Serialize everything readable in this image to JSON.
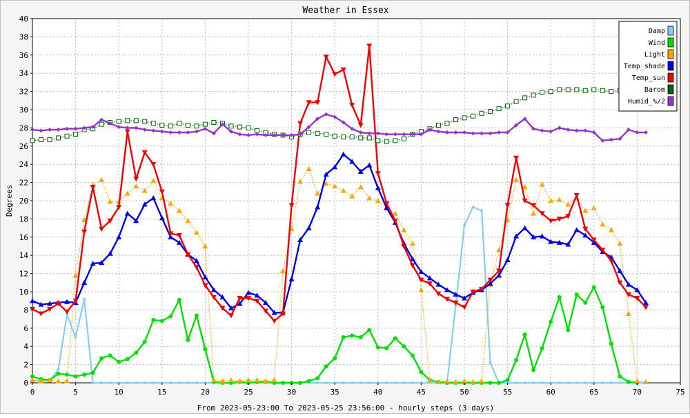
{
  "chart_data": {
    "type": "line",
    "title": "Weather in Essex",
    "xlabel": "From 2023-05-23:00 To 2023-05-25 23:56:00 - hourly steps (3 days)",
    "ylabel": "Degrees",
    "xlim": [
      0,
      75
    ],
    "ylim": [
      0,
      40
    ],
    "x_ticks": [
      0,
      5,
      10,
      15,
      20,
      25,
      30,
      35,
      40,
      45,
      50,
      55,
      60,
      65,
      70,
      75
    ],
    "y_ticks": [
      0,
      2,
      4,
      6,
      8,
      10,
      12,
      14,
      16,
      18,
      20,
      22,
      24,
      26,
      28,
      30,
      32,
      34,
      36,
      38,
      40
    ],
    "grid": true,
    "legend_position": "top-right",
    "series": [
      {
        "name": "Damp",
        "color": "#87ceeb",
        "values": [
          0.3,
          0.2,
          0.2,
          1.5,
          7.5,
          5.0,
          9.2,
          0,
          0,
          0,
          0,
          0,
          0,
          0,
          0,
          0,
          0,
          0,
          0,
          0,
          0,
          0,
          0,
          0,
          0,
          0,
          0,
          0,
          0,
          0,
          0,
          0,
          0,
          0,
          0,
          0,
          0,
          0,
          0,
          0,
          0,
          0,
          0,
          0,
          0,
          0,
          0,
          0,
          0,
          8.5,
          17.3,
          19.3,
          18.9,
          2.2,
          0,
          0,
          0,
          0,
          0,
          0,
          0,
          0,
          0,
          0,
          0,
          0,
          0,
          0,
          0,
          0,
          0,
          0
        ]
      },
      {
        "name": "Wind",
        "color": "#00dd00",
        "values": [
          0.7,
          0.4,
          0.3,
          1.0,
          0.9,
          0.7,
          0.9,
          1.1,
          2.7,
          3.0,
          2.3,
          2.6,
          3.3,
          4.5,
          6.9,
          6.8,
          7.3,
          9.1,
          4.7,
          7.4,
          3.7,
          0.1,
          0,
          0,
          0.1,
          0,
          0.1,
          0.1,
          0,
          0,
          0,
          0,
          0.2,
          0.5,
          1.8,
          2.7,
          5.0,
          5.2,
          5.0,
          5.8,
          3.9,
          3.8,
          4.9,
          4.0,
          3.0,
          1.2,
          0.3,
          0.1,
          0,
          0,
          0,
          0,
          0,
          0,
          0,
          0.3,
          2.5,
          5.3,
          1.4,
          3.8,
          6.7,
          9.4,
          5.8,
          9.7,
          8.8,
          10.5,
          8.3,
          4.3,
          0.7,
          0.1,
          0
        ]
      },
      {
        "name": "Light",
        "color": "#ffa500",
        "values": [
          0.3,
          0.2,
          0.3,
          0.2,
          0.2,
          11.8,
          17.9,
          21.7,
          22.3,
          19.9,
          19.9,
          20.8,
          21.6,
          21.1,
          22.2,
          20.3,
          19.7,
          18.9,
          17.8,
          16.5,
          15.0,
          0.3,
          0.2,
          0.3,
          0.2,
          0.3,
          0.3,
          0.2,
          0.3,
          12.3,
          16.9,
          22.1,
          23.5,
          20.8,
          21.9,
          21.6,
          21.1,
          20.5,
          21.5,
          20.3,
          20.0,
          19.3,
          18.6,
          16.8,
          15.3,
          10.2,
          0.3,
          0.1,
          0.2,
          0.1,
          0.2,
          0.1,
          0.2,
          10.8,
          14.6,
          17.9,
          22.3,
          21.5,
          18.6,
          21.8,
          20.0,
          20.1,
          19.6,
          20.3,
          18.9,
          19.2,
          17.4,
          16.8,
          15.3,
          7.6,
          0.2,
          0.1
        ]
      },
      {
        "name": "Temp_shade",
        "color": "#0000dd",
        "values": [
          9.0,
          8.6,
          8.7,
          8.8,
          8.9,
          8.8,
          11.0,
          13.1,
          13.2,
          14.2,
          16.0,
          18.6,
          17.8,
          19.6,
          20.3,
          18.1,
          16.0,
          15.4,
          14.1,
          13.4,
          11.6,
          10.2,
          9.4,
          8.2,
          8.7,
          9.9,
          9.6,
          8.8,
          7.7,
          7.7,
          11.4,
          15.7,
          17.0,
          19.3,
          22.9,
          23.7,
          25.1,
          24.3,
          23.2,
          23.9,
          21.4,
          19.2,
          17.6,
          15.3,
          13.6,
          12.2,
          11.5,
          10.8,
          10.2,
          9.7,
          9.3,
          9.9,
          10.2,
          10.9,
          11.8,
          13.5,
          16.1,
          17.0,
          16.0,
          16.1,
          15.5,
          15.4,
          15.2,
          16.8,
          16.2,
          15.4,
          14.4,
          13.8,
          12.3,
          10.8,
          10.2,
          8.8
        ]
      },
      {
        "name": "Temp_sun",
        "color": "#ee0000",
        "values": [
          8.1,
          7.6,
          8.1,
          8.7,
          7.8,
          9.0,
          16.6,
          21.5,
          16.9,
          17.8,
          19.3,
          27.6,
          22.4,
          25.3,
          24.0,
          21.0,
          16.4,
          16.2,
          14.1,
          12.7,
          10.7,
          9.4,
          8.2,
          7.4,
          9.3,
          9.3,
          9.0,
          7.9,
          6.8,
          7.6,
          19.5,
          28.5,
          30.8,
          30.8,
          35.8,
          33.9,
          34.4,
          30.5,
          28.3,
          37.0,
          23.0,
          19.7,
          17.8,
          15.0,
          12.9,
          11.3,
          10.9,
          9.8,
          9.2,
          8.8,
          8.3,
          10.0,
          10.3,
          11.3,
          12.3,
          19.5,
          24.7,
          20.0,
          19.5,
          18.6,
          17.8,
          18.0,
          18.3,
          20.6,
          16.9,
          15.7,
          14.6,
          13.4,
          11.0,
          9.7,
          9.3,
          8.3
        ]
      },
      {
        "name": "Barom",
        "color": "#006400",
        "values": [
          26.6,
          26.7,
          26.7,
          26.9,
          27.1,
          27.3,
          27.8,
          27.9,
          28.4,
          28.6,
          28.7,
          28.8,
          28.8,
          28.7,
          28.5,
          28.3,
          28.2,
          28.5,
          28.3,
          28.2,
          28.4,
          28.6,
          28.5,
          28.2,
          28.1,
          28.0,
          27.7,
          27.5,
          27.3,
          27.2,
          27.0,
          27.3,
          27.5,
          27.4,
          27.3,
          27.1,
          27.0,
          27.0,
          26.9,
          26.9,
          26.6,
          26.5,
          26.6,
          26.8,
          27.3,
          27.6,
          27.9,
          28.3,
          28.5,
          28.9,
          29.1,
          29.3,
          29.6,
          29.8,
          30.1,
          30.4,
          30.9,
          31.3,
          31.6,
          31.9,
          32.0,
          32.2,
          32.2,
          32.2,
          32.1,
          32.2,
          32.1,
          32.0,
          32.1,
          32.1
        ]
      },
      {
        "name": "Humid_%/2",
        "color": "#9932cc",
        "values": [
          27.8,
          27.7,
          27.8,
          27.8,
          27.9,
          27.9,
          28.0,
          28.1,
          28.9,
          28.5,
          28.1,
          28.0,
          28.0,
          27.8,
          27.7,
          27.6,
          27.5,
          27.5,
          27.5,
          27.6,
          27.9,
          27.4,
          28.4,
          27.6,
          27.3,
          27.2,
          27.3,
          27.2,
          27.2,
          27.2,
          27.2,
          27.3,
          28.1,
          29.0,
          29.5,
          29.2,
          28.6,
          27.9,
          27.5,
          27.4,
          27.4,
          27.3,
          27.3,
          27.3,
          27.3,
          27.3,
          27.8,
          27.6,
          27.5,
          27.5,
          27.5,
          27.4,
          27.4,
          27.4,
          27.5,
          27.5,
          28.3,
          29.0,
          27.9,
          27.7,
          27.6,
          28.0,
          27.8,
          27.7,
          27.7,
          27.5,
          26.6,
          26.7,
          26.8,
          27.8,
          27.5,
          27.5
        ]
      }
    ]
  }
}
